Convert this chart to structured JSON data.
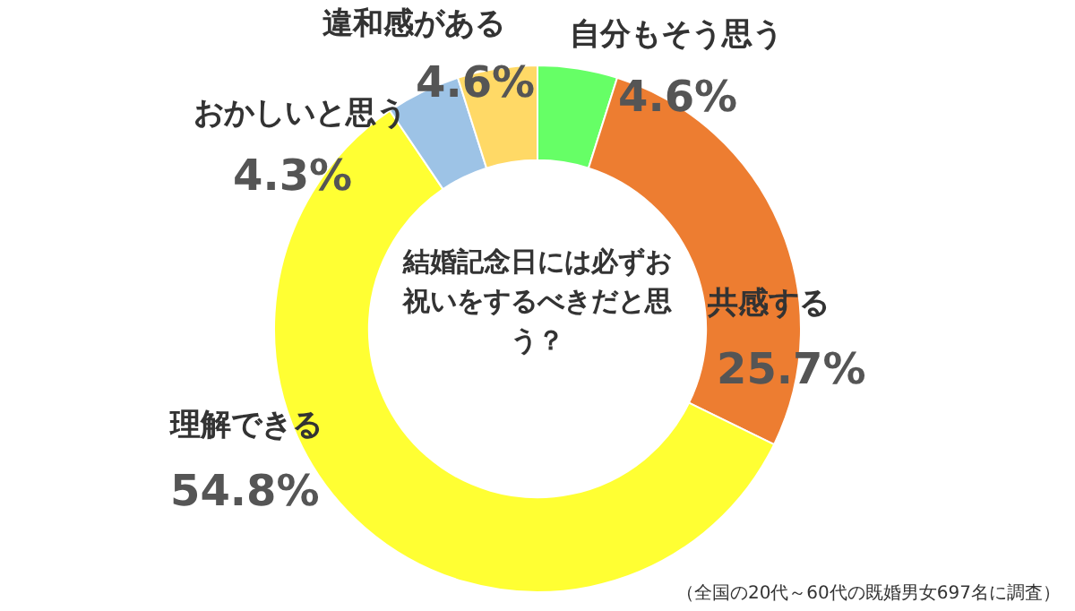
{
  "chart_data": {
    "type": "donut",
    "title": "結婚記念日には必ずお祝いをするべきだと思う？",
    "categories": [
      "自分もそう思う",
      "共感する",
      "理解できる",
      "おかしいと思う",
      "違和感がある"
    ],
    "values": [
      4.6,
      25.7,
      54.8,
      4.3,
      4.6
    ],
    "colors": [
      "#66ff66",
      "#ed7d31",
      "#ffff33",
      "#9dc3e6",
      "#ffd966"
    ],
    "value_labels": [
      "4.6%",
      "25.7%",
      "54.8%",
      "4.3%",
      "4.6%"
    ],
    "annotations": [
      "（全国の20代～60代の既婚男女697名に調査）"
    ],
    "legend": false
  }
}
